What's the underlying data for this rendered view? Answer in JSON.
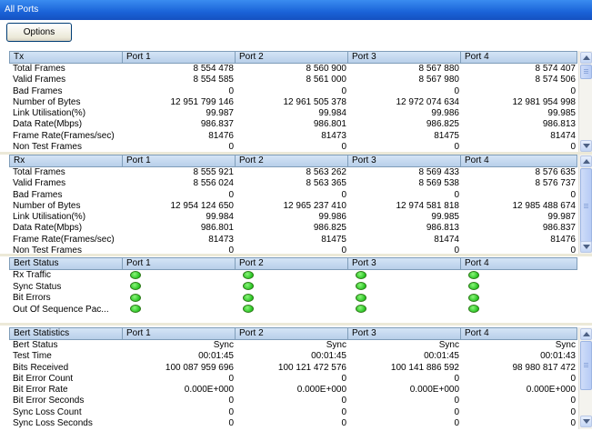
{
  "window": {
    "title": "All Ports"
  },
  "toolbar": {
    "options_label": "Options"
  },
  "tx": {
    "headers": [
      "Tx",
      "Port 1",
      "Port 2",
      "Port 3",
      "Port 4"
    ],
    "rows": [
      [
        "Total Frames",
        "8 554 478",
        "8 560 900",
        "8 567 880",
        "8 574 407"
      ],
      [
        "Valid Frames",
        "8 554 585",
        "8 561 000",
        "8 567 980",
        "8 574 506"
      ],
      [
        "Bad Frames",
        "0",
        "0",
        "0",
        "0"
      ],
      [
        "Number of Bytes",
        "12 951 799 146",
        "12 961 505 378",
        "12 972 074 634",
        "12 981 954 998"
      ],
      [
        "Link Utilisation(%)",
        "99.987",
        "99.984",
        "99.986",
        "99.985"
      ],
      [
        "Data Rate(Mbps)",
        "986.837",
        "986.801",
        "986.825",
        "986.813"
      ],
      [
        "Frame Rate(Frames/sec)",
        "81476",
        "81473",
        "81475",
        "81474"
      ],
      [
        "Non Test Frames",
        "0",
        "0",
        "0",
        "0"
      ]
    ]
  },
  "rx": {
    "headers": [
      "Rx",
      "Port 1",
      "Port 2",
      "Port 3",
      "Port 4"
    ],
    "rows": [
      [
        "Total Frames",
        "8 555 921",
        "8 563 262",
        "8 569 433",
        "8 576 635"
      ],
      [
        "Valid Frames",
        "8 556 024",
        "8 563 365",
        "8 569 538",
        "8 576 737"
      ],
      [
        "Bad Frames",
        "0",
        "0",
        "0",
        "0"
      ],
      [
        "Number of Bytes",
        "12 954 124 650",
        "12 965 237 410",
        "12 974 581 818",
        "12 985 488 674"
      ],
      [
        "Link Utilisation(%)",
        "99.984",
        "99.986",
        "99.985",
        "99.987"
      ],
      [
        "Data Rate(Mbps)",
        "986.801",
        "986.825",
        "986.813",
        "986.837"
      ],
      [
        "Frame Rate(Frames/sec)",
        "81473",
        "81475",
        "81474",
        "81476"
      ],
      [
        "Non Test Frames",
        "0",
        "0",
        "0",
        "0"
      ]
    ]
  },
  "bert_status": {
    "headers": [
      "Bert Status",
      "Port 1",
      "Port 2",
      "Port 3",
      "Port 4"
    ],
    "rows": [
      "Rx Traffic",
      "Sync Status",
      "Bit Errors",
      "Out Of Sequence Pac..."
    ],
    "indicator_color": "#00b000"
  },
  "bert_stats": {
    "headers": [
      "Bert Statistics",
      "Port 1",
      "Port 2",
      "Port 3",
      "Port 4"
    ],
    "rows": [
      [
        "Bert Status",
        "Sync",
        "Sync",
        "Sync",
        "Sync"
      ],
      [
        "Test Time",
        "00:01:45",
        "00:01:45",
        "00:01:45",
        "00:01:43"
      ],
      [
        "Bits Received",
        "100 087 959 696",
        "100 121 472 576",
        "100 141 886 592",
        "98 980 817 472"
      ],
      [
        "Bit Error Count",
        "0",
        "0",
        "0",
        "0"
      ],
      [
        "Bit Error Rate",
        "0.000E+000",
        "0.000E+000",
        "0.000E+000",
        "0.000E+000"
      ],
      [
        "Bit Error Seconds",
        "0",
        "0",
        "0",
        "0"
      ],
      [
        "Sync Loss Count",
        "0",
        "0",
        "0",
        "0"
      ],
      [
        "Sync Loss Seconds",
        "0",
        "0",
        "0",
        "0"
      ]
    ]
  }
}
